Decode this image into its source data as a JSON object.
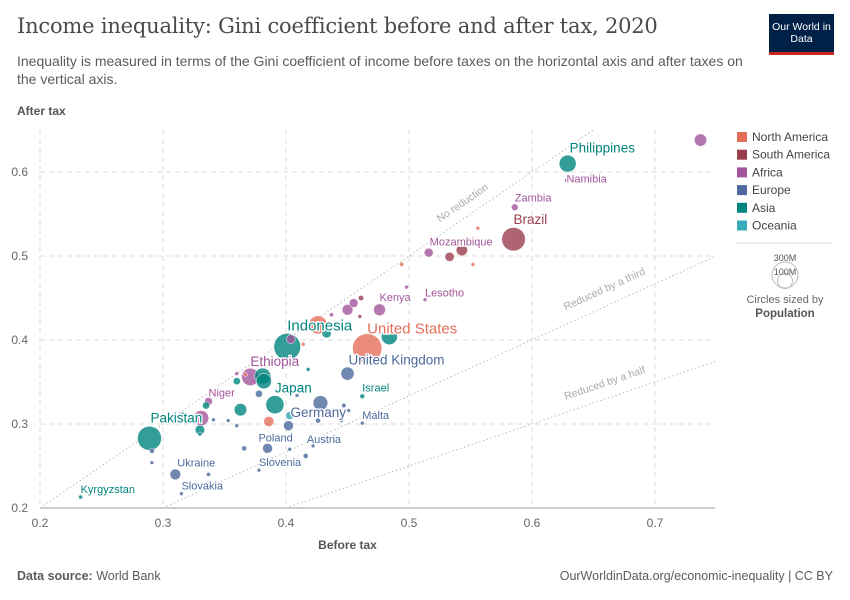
{
  "header": {
    "title": "Income inequality: Gini coefficient before and after tax, 2020",
    "subtitle": "Inequality is measured in terms of the Gini coefficient of income before taxes on the horizontal axis and after taxes on the vertical axis.",
    "logo": "Our World in Data"
  },
  "footer": {
    "source_label": "Data source:",
    "source": "World Bank",
    "url": "OurWorldinData.org/economic-inequality | CC BY"
  },
  "chart_data": {
    "type": "scatter",
    "xlabel": "Before tax",
    "ylabel": "After tax",
    "xlim": [
      0.195,
      0.75
    ],
    "ylim": [
      0.2,
      0.65
    ],
    "xticks": [
      0.2,
      0.3,
      0.4,
      0.5,
      0.6,
      0.7
    ],
    "yticks": [
      0.2,
      0.3,
      0.4,
      0.5,
      0.6
    ],
    "grid": true,
    "legend_position": "right",
    "regions": [
      {
        "name": "North America",
        "color": "#e56e5a"
      },
      {
        "name": "South America",
        "color": "#9a3f4d"
      },
      {
        "name": "Africa",
        "color": "#a2559c"
      },
      {
        "name": "Europe",
        "color": "#4c6a9c"
      },
      {
        "name": "Asia",
        "color": "#00847e"
      },
      {
        "name": "Oceania",
        "color": "#38aaba"
      }
    ],
    "size_legend": {
      "title": "Circles sized by",
      "variable": "Population",
      "values": [
        "300M",
        "100M"
      ]
    },
    "reference_lines": [
      {
        "label": "No reduction",
        "slope": 1
      },
      {
        "label": "Reduced by a third",
        "slope": 0.667
      },
      {
        "label": "Reduced by a half",
        "slope": 0.5
      }
    ],
    "points": [
      [
        "",
        "Africa",
        0.737,
        0.638,
        59
      ],
      [
        "Philippines",
        "Asia",
        0.629,
        0.61,
        110
      ],
      [
        "Namibia",
        "Africa",
        0.628,
        0.59,
        2.5
      ],
      [
        "Zambia",
        "Africa",
        0.586,
        0.558,
        18
      ],
      [
        "Brazil",
        "South America",
        0.585,
        0.52,
        212
      ],
      [
        "",
        "North America",
        0.556,
        0.533,
        5
      ],
      [
        "",
        "South America",
        0.543,
        0.507,
        50
      ],
      [
        "",
        "South America",
        0.533,
        0.499,
        33
      ],
      [
        "",
        "North America",
        0.552,
        0.49,
        5
      ],
      [
        "Mozambique",
        "Africa",
        0.516,
        0.504,
        31
      ],
      [
        "",
        "North America",
        0.494,
        0.49,
        7
      ],
      [
        "",
        "Africa",
        0.498,
        0.463,
        2.5
      ],
      [
        "Lesotho",
        "Africa",
        0.513,
        0.448,
        2.2
      ],
      [
        "Kenya",
        "Africa",
        0.476,
        0.436,
        54
      ],
      [
        "",
        "South America",
        0.461,
        0.45,
        11
      ],
      [
        "",
        "Africa",
        0.455,
        0.444,
        30
      ],
      [
        "",
        "Africa",
        0.45,
        0.436,
        45
      ],
      [
        "",
        "Africa",
        0.437,
        0.43,
        7
      ],
      [
        "",
        "South America",
        0.46,
        0.428,
        3
      ],
      [
        "",
        "North America",
        0.426,
        0.418,
        126
      ],
      [
        "",
        "Asia",
        0.433,
        0.408,
        33
      ],
      [
        "",
        "Asia",
        0.484,
        0.404,
        100
      ],
      [
        "Indonesia",
        "Asia",
        0.401,
        0.392,
        273
      ],
      [
        "",
        "Africa",
        0.404,
        0.401,
        30
      ],
      [
        "United States",
        "North America",
        0.466,
        0.39,
        330
      ],
      [
        "",
        "North America",
        0.414,
        0.395,
        3
      ],
      [
        "United Kingdom",
        "Europe",
        0.45,
        0.36,
        67
      ],
      [
        "",
        "Asia",
        0.418,
        0.365,
        3
      ],
      [
        "Ethiopia",
        "Africa",
        0.371,
        0.356,
        115
      ],
      [
        "",
        "Africa",
        0.36,
        0.36,
        3
      ],
      [
        "",
        "Asia",
        0.381,
        0.357,
        100
      ],
      [
        "",
        "Asia",
        0.382,
        0.351,
        90
      ],
      [
        "",
        "Asia",
        0.36,
        0.351,
        20
      ],
      [
        "",
        "North America",
        0.367,
        0.359,
        3
      ],
      [
        "Niger",
        "Africa",
        0.337,
        0.327,
        24
      ],
      [
        "Japan",
        "Asia",
        0.391,
        0.323,
        126
      ],
      [
        "Germany",
        "Europe",
        0.428,
        0.325,
        83
      ],
      [
        "",
        "Europe",
        0.378,
        0.336,
        20
      ],
      [
        "",
        "Europe",
        0.409,
        0.334,
        3
      ],
      [
        "",
        "Europe",
        0.447,
        0.322,
        8
      ],
      [
        "Israel",
        "Asia",
        0.462,
        0.333,
        9
      ],
      [
        "",
        "Europe",
        0.451,
        0.316,
        3
      ],
      [
        "",
        "Asia",
        0.335,
        0.322,
        20
      ],
      [
        "",
        "Asia",
        0.363,
        0.317,
        60
      ],
      [
        "",
        "Oceania",
        0.403,
        0.31,
        25
      ],
      [
        "",
        "Europe",
        0.426,
        0.304,
        10
      ],
      [
        "",
        "Europe",
        0.445,
        0.304,
        3
      ],
      [
        "Malta",
        "Europe",
        0.462,
        0.301,
        0.5
      ],
      [
        "",
        "Europe",
        0.341,
        0.305,
        3
      ],
      [
        "",
        "Europe",
        0.353,
        0.304,
        6
      ],
      [
        "",
        "Europe",
        0.36,
        0.298,
        3
      ],
      [
        "",
        "North America",
        0.386,
        0.303,
        40
      ],
      [
        "",
        "Asia",
        0.33,
        0.293,
        35
      ],
      [
        "",
        "Asia",
        0.33,
        0.288,
        3
      ],
      [
        "",
        "Africa",
        0.331,
        0.307,
        90
      ],
      [
        "",
        "Asia",
        0.317,
        0.31,
        20
      ],
      [
        "Pakistan",
        "Asia",
        0.289,
        0.283,
        220
      ],
      [
        "Poland",
        "Europe",
        0.402,
        0.298,
        38
      ],
      [
        "Austria",
        "Europe",
        0.434,
        0.28,
        9
      ],
      [
        "",
        "Europe",
        0.403,
        0.27,
        3
      ],
      [
        "",
        "Europe",
        0.385,
        0.271,
        38
      ],
      [
        "",
        "Europe",
        0.366,
        0.271,
        10
      ],
      [
        "",
        "Europe",
        0.422,
        0.274,
        6
      ],
      [
        "",
        "Europe",
        0.416,
        0.262,
        10
      ],
      [
        "",
        "Europe",
        0.291,
        0.268,
        10
      ],
      [
        "",
        "Europe",
        0.291,
        0.254,
        3
      ],
      [
        "Slovenia",
        "Europe",
        0.378,
        0.245,
        2.1
      ],
      [
        "Ukraine",
        "Europe",
        0.31,
        0.24,
        44
      ],
      [
        "",
        "Europe",
        0.337,
        0.24,
        7
      ],
      [
        "Slovakia",
        "Europe",
        0.315,
        0.217,
        5.5
      ],
      [
        "Kyrgyzstan",
        "Asia",
        0.233,
        0.213,
        6.6
      ]
    ]
  }
}
